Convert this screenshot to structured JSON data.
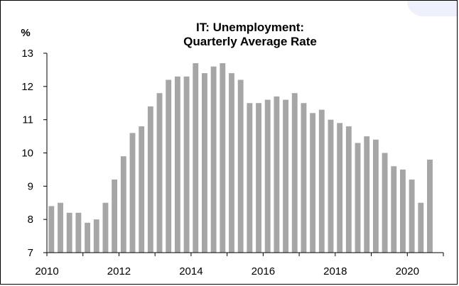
{
  "chart_data": {
    "type": "bar",
    "title_lines": [
      "IT: Unemployment:",
      "Quarterly Average Rate"
    ],
    "unit_label": "%",
    "bar_color": "#a6a6a6",
    "accent_color": "#eef0fb",
    "ylim": [
      7,
      13
    ],
    "y_ticks": [
      "7",
      "8",
      "9",
      "10",
      "11",
      "12",
      "13"
    ],
    "xlim": [
      2010,
      2021
    ],
    "x_ticks": [
      "2010",
      "2012",
      "2014",
      "2016",
      "2018",
      "2020"
    ],
    "grid": false,
    "categories": [
      "2010 Q1",
      "2010 Q2",
      "2010 Q3",
      "2010 Q4",
      "2011 Q1",
      "2011 Q2",
      "2011 Q3",
      "2011 Q4",
      "2012 Q1",
      "2012 Q2",
      "2012 Q3",
      "2012 Q4",
      "2013 Q1",
      "2013 Q2",
      "2013 Q3",
      "2013 Q4",
      "2014 Q1",
      "2014 Q2",
      "2014 Q3",
      "2014 Q4",
      "2015 Q1",
      "2015 Q2",
      "2015 Q3",
      "2015 Q4",
      "2016 Q1",
      "2016 Q2",
      "2016 Q3",
      "2016 Q4",
      "2017 Q1",
      "2017 Q2",
      "2017 Q3",
      "2017 Q4",
      "2018 Q1",
      "2018 Q2",
      "2018 Q3",
      "2018 Q4",
      "2019 Q1",
      "2019 Q2",
      "2019 Q3",
      "2019 Q4",
      "2020 Q1",
      "2020 Q2",
      "2020 Q3"
    ],
    "values": [
      8.4,
      8.5,
      8.2,
      8.2,
      7.9,
      8.0,
      8.5,
      9.2,
      9.9,
      10.6,
      10.8,
      11.4,
      11.8,
      12.2,
      12.3,
      12.3,
      12.7,
      12.4,
      12.6,
      12.7,
      12.4,
      12.2,
      11.5,
      11.5,
      11.6,
      11.7,
      11.6,
      11.8,
      11.5,
      11.2,
      11.3,
      11.0,
      10.9,
      10.8,
      10.3,
      10.5,
      10.4,
      10.0,
      9.6,
      9.5,
      9.2,
      8.5,
      9.8
    ]
  }
}
